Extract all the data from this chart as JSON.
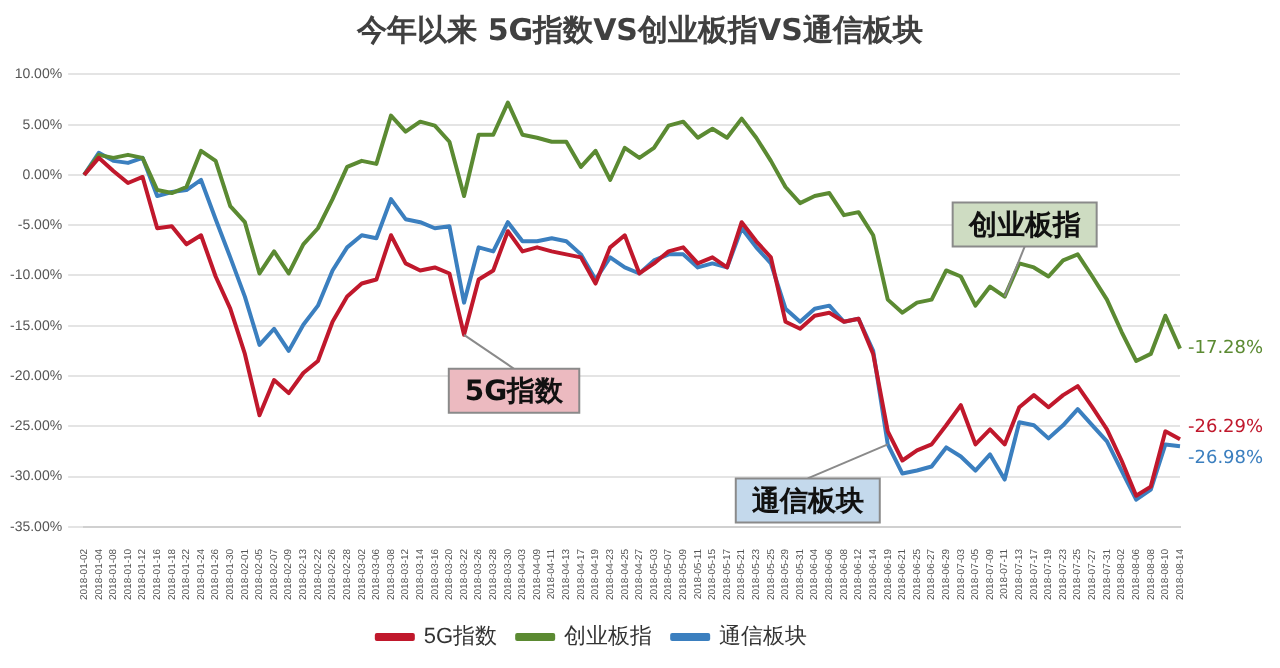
{
  "chart_data": {
    "type": "line",
    "title": "今年以来 5G指数VS创业板指VS通信板块",
    "categories": [
      "2018-01-02",
      "2018-01-04",
      "2018-01-08",
      "2018-01-10",
      "2018-01-12",
      "2018-01-16",
      "2018-01-18",
      "2018-01-22",
      "2018-01-24",
      "2018-01-26",
      "2018-01-30",
      "2018-02-01",
      "2018-02-05",
      "2018-02-07",
      "2018-02-09",
      "2018-02-13",
      "2018-02-22",
      "2018-02-26",
      "2018-02-28",
      "2018-03-02",
      "2018-03-06",
      "2018-03-08",
      "2018-03-12",
      "2018-03-14",
      "2018-03-16",
      "2018-03-20",
      "2018-03-22",
      "2018-03-26",
      "2018-03-28",
      "2018-03-30",
      "2018-04-03",
      "2018-04-09",
      "2018-04-11",
      "2018-04-13",
      "2018-04-17",
      "2018-04-19",
      "2018-04-23",
      "2018-04-25",
      "2018-04-27",
      "2018-05-03",
      "2018-05-07",
      "2018-05-09",
      "2018-05-11",
      "2018-05-15",
      "2018-05-17",
      "2018-05-21",
      "2018-05-23",
      "2018-05-25",
      "2018-05-29",
      "2018-05-31",
      "2018-06-04",
      "2018-06-06",
      "2018-06-08",
      "2018-06-12",
      "2018-06-14",
      "2018-06-19",
      "2018-06-21",
      "2018-06-25",
      "2018-06-27",
      "2018-06-29",
      "2018-07-03",
      "2018-07-05",
      "2018-07-09",
      "2018-07-11",
      "2018-07-13",
      "2018-07-17",
      "2018-07-19",
      "2018-07-23",
      "2018-07-25",
      "2018-07-27",
      "2018-07-31",
      "2018-08-02",
      "2018-08-06",
      "2018-08-08",
      "2018-08-10",
      "2018-08-14"
    ],
    "series": [
      {
        "name": "5G指数",
        "color": "#c0182c",
        "values": [
          0,
          1.7,
          0.4,
          -0.8,
          -0.2,
          -5.3,
          -5.1,
          -6.9,
          -6.0,
          -10.1,
          -13.3,
          -17.8,
          -23.9,
          -20.4,
          -21.7,
          -19.7,
          -18.5,
          -14.6,
          -12.1,
          -10.8,
          -10.4,
          -6.0,
          -8.8,
          -9.5,
          -9.2,
          -9.8,
          -15.9,
          -10.4,
          -9.5,
          -5.6,
          -7.6,
          -7.2,
          -7.6,
          -7.9,
          -8.2,
          -10.8,
          -7.2,
          -6.0,
          -9.8,
          -8.8,
          -7.6,
          -7.2,
          -8.8,
          -8.2,
          -9.2,
          -4.7,
          -6.6,
          -8.2,
          -14.6,
          -15.3,
          -14.0,
          -13.7,
          -14.6,
          -14.3,
          -17.8,
          -25.5,
          -28.4,
          -27.4,
          -26.8,
          -24.9,
          -22.9,
          -26.8,
          -25.3,
          -26.8,
          -23.1,
          -21.9,
          -23.1,
          -21.9,
          -21.0,
          -23.1,
          -25.3,
          -28.4,
          -31.9,
          -31.0,
          -25.5,
          -26.29
        ],
        "value_labels": [
          null,
          null,
          null,
          null,
          null,
          null,
          null,
          null,
          null,
          null,
          null,
          null,
          null,
          null,
          null,
          null,
          null,
          null,
          null,
          null,
          null,
          null,
          null,
          null,
          null,
          null,
          null,
          null,
          null,
          null,
          null,
          null,
          null,
          null,
          null,
          null,
          null,
          null,
          null,
          null,
          null,
          null,
          null,
          null,
          null,
          null,
          null,
          null,
          null,
          null,
          null,
          null,
          null,
          null,
          null,
          null,
          null,
          null,
          null,
          null,
          null,
          null,
          null,
          null,
          null,
          null,
          null,
          null,
          null,
          null,
          null,
          null,
          null,
          null,
          null,
          "-26.29%"
        ]
      },
      {
        "name": "创业板指",
        "color": "#5b8a32",
        "values": [
          0,
          2.0,
          1.7,
          2.0,
          1.7,
          -1.5,
          -1.8,
          -1.2,
          2.4,
          1.4,
          -3.1,
          -4.7,
          -9.8,
          -7.6,
          -9.8,
          -6.9,
          -5.3,
          -2.4,
          0.8,
          1.4,
          1.1,
          5.9,
          4.3,
          5.3,
          4.9,
          3.3,
          -2.1,
          4.0,
          4.0,
          7.2,
          4.0,
          3.7,
          3.3,
          3.3,
          0.8,
          2.4,
          -0.5,
          2.7,
          1.7,
          2.7,
          4.9,
          5.3,
          3.7,
          4.6,
          3.7,
          5.6,
          3.7,
          1.4,
          -1.2,
          -2.8,
          -2.1,
          -1.8,
          -4.0,
          -3.7,
          -6.0,
          -12.4,
          -13.7,
          -12.7,
          -12.4,
          -9.5,
          -10.1,
          -13.0,
          -11.1,
          -12.1,
          -8.8,
          -9.2,
          -10.1,
          -8.5,
          -7.9,
          -10.1,
          -12.4,
          -15.6,
          -18.5,
          -17.8,
          -14.0,
          -17.28
        ],
        "value_labels": [
          null,
          null,
          null,
          null,
          null,
          null,
          null,
          null,
          null,
          null,
          null,
          null,
          null,
          null,
          null,
          null,
          null,
          null,
          null,
          null,
          null,
          null,
          null,
          null,
          null,
          null,
          null,
          null,
          null,
          null,
          null,
          null,
          null,
          null,
          null,
          null,
          null,
          null,
          null,
          null,
          null,
          null,
          null,
          null,
          null,
          null,
          null,
          null,
          null,
          null,
          null,
          null,
          null,
          null,
          null,
          null,
          null,
          null,
          null,
          null,
          null,
          null,
          null,
          null,
          null,
          null,
          null,
          null,
          null,
          null,
          null,
          null,
          null,
          null,
          null,
          "-17.28%"
        ]
      },
      {
        "name": "通信板块",
        "color": "#3b7fbf",
        "values": [
          0,
          2.2,
          1.4,
          1.2,
          1.7,
          -2.1,
          -1.7,
          -1.5,
          -0.5,
          -4.4,
          -8.2,
          -12.1,
          -16.9,
          -15.3,
          -17.5,
          -14.9,
          -13.0,
          -9.5,
          -7.2,
          -6.0,
          -6.3,
          -2.4,
          -4.4,
          -4.7,
          -5.3,
          -5.1,
          -12.7,
          -7.2,
          -7.6,
          -4.7,
          -6.6,
          -6.6,
          -6.3,
          -6.6,
          -7.9,
          -10.4,
          -8.2,
          -9.2,
          -9.8,
          -8.5,
          -7.9,
          -7.9,
          -9.2,
          -8.8,
          -9.2,
          -5.3,
          -7.2,
          -8.8,
          -13.3,
          -14.6,
          -13.3,
          -13.0,
          -14.6,
          -14.3,
          -17.5,
          -26.8,
          -29.7,
          -29.4,
          -29.0,
          -27.1,
          -28.0,
          -29.4,
          -27.8,
          -30.3,
          -24.6,
          -24.9,
          -26.2,
          -24.9,
          -23.3,
          -24.9,
          -26.5,
          -29.4,
          -32.3,
          -31.3,
          -26.8,
          -26.98
        ],
        "value_labels": [
          null,
          null,
          null,
          null,
          null,
          null,
          null,
          null,
          null,
          null,
          null,
          null,
          null,
          null,
          null,
          null,
          null,
          null,
          null,
          null,
          null,
          null,
          null,
          null,
          null,
          null,
          null,
          null,
          null,
          null,
          null,
          null,
          null,
          null,
          null,
          null,
          null,
          null,
          null,
          null,
          null,
          null,
          null,
          null,
          null,
          null,
          null,
          null,
          null,
          null,
          null,
          null,
          null,
          null,
          null,
          null,
          null,
          null,
          null,
          null,
          null,
          null,
          null,
          null,
          null,
          null,
          null,
          null,
          null,
          null,
          null,
          null,
          null,
          null,
          null,
          "-26.98%"
        ]
      }
    ],
    "ylim": [
      -35,
      10
    ],
    "yticks": [
      {
        "value": 10,
        "label": "10.00%"
      },
      {
        "value": 5,
        "label": "5.00%"
      },
      {
        "value": 0,
        "label": "0.00%"
      },
      {
        "value": -5,
        "label": "-5.00%"
      },
      {
        "value": -10,
        "label": "-10.00%"
      },
      {
        "value": -15,
        "label": "-15.00%"
      },
      {
        "value": -20,
        "label": "-20.00%"
      },
      {
        "value": -25,
        "label": "-25.00%"
      },
      {
        "value": -30,
        "label": "-30.00%"
      },
      {
        "value": -35,
        "label": "-35.00%"
      }
    ],
    "annotations": [
      {
        "text": "5G指数",
        "x": "2018-03-22",
        "y": -15.9
      },
      {
        "text": "创业板指",
        "x": "2018-07-11",
        "y": -12.1
      },
      {
        "text": "通信板块",
        "x": "2018-06-19",
        "y": -26.8
      }
    ],
    "grid": "y",
    "legend": "bottom",
    "marker": "none",
    "line_style": "solid"
  }
}
